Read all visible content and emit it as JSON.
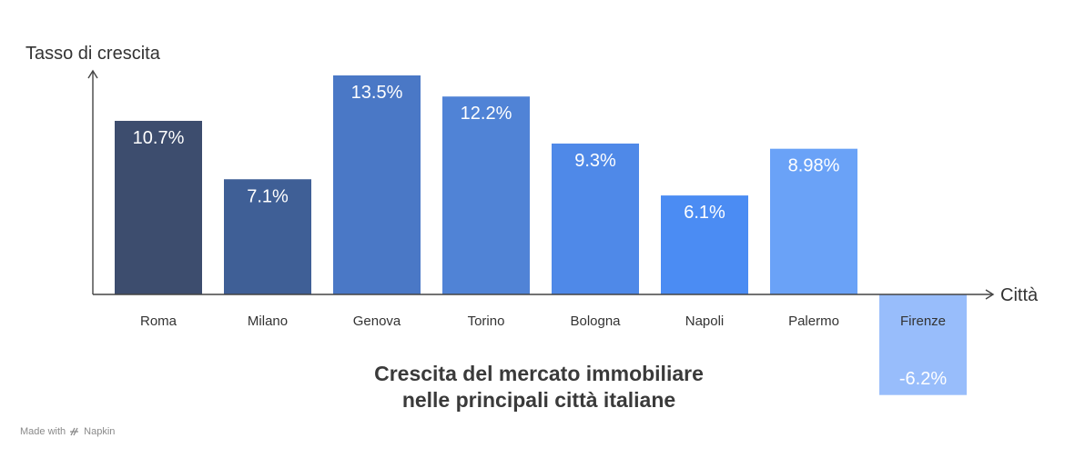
{
  "chart_data": {
    "type": "bar",
    "title_lines": [
      "Crescita del mercato immobiliare",
      "nelle principali città italiane"
    ],
    "xlabel": "Città",
    "ylabel": "Tasso di crescita",
    "categories": [
      "Roma",
      "Milano",
      "Genova",
      "Torino",
      "Bologna",
      "Napoli",
      "Palermo",
      "Firenze"
    ],
    "values": [
      10.7,
      7.1,
      13.5,
      12.2,
      9.3,
      6.1,
      8.98,
      -6.2
    ],
    "value_labels": [
      "10.7%",
      "7.1%",
      "13.5%",
      "12.2%",
      "9.3%",
      "6.1%",
      "8.98%",
      "-6.2%"
    ],
    "colors": [
      "#3d4d6e",
      "#3f5f96",
      "#4a78c6",
      "#5083d6",
      "#4f89e8",
      "#4b8cf3",
      "#6aa2f7",
      "#98bdfb"
    ],
    "ylim": [
      -6.2,
      13.5
    ],
    "grid": false
  },
  "footer": {
    "made_with": "Made with",
    "brand": "Napkin",
    "brand_icon": "napkin-logo-icon"
  }
}
